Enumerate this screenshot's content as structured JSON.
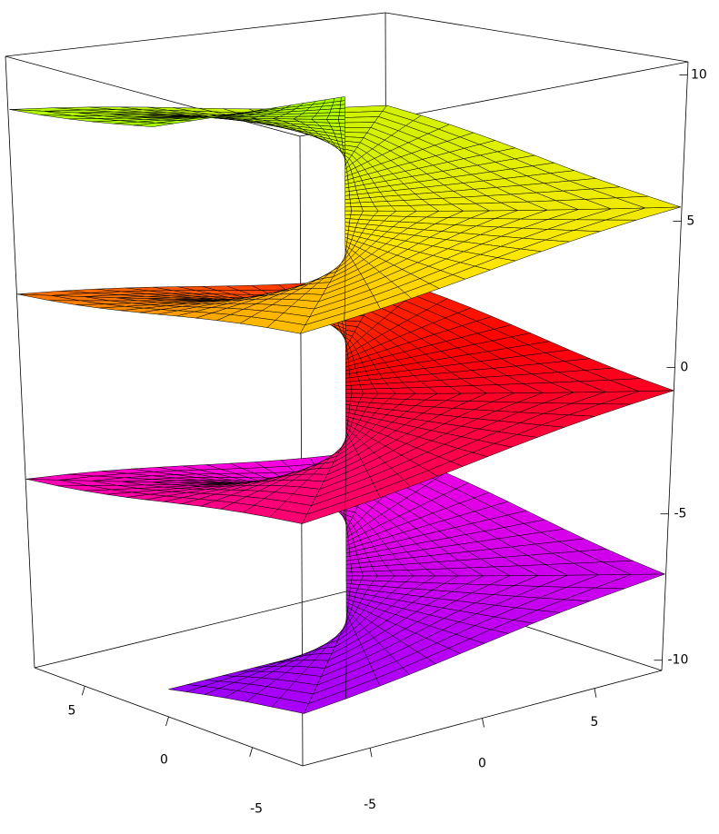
{
  "chart_data": {
    "type": "surface",
    "xlim": [
      -8,
      8
    ],
    "ylim": [
      -8,
      8
    ],
    "zlim": [
      -10.35,
      10.45
    ],
    "xticks": [
      -5,
      0,
      5
    ],
    "yticks": [
      -5,
      0,
      5
    ],
    "zticks": [
      -10,
      -5,
      0,
      5,
      10
    ],
    "surface_z": [
      -9.42,
      9.42
    ],
    "colors": [
      "#9900ff",
      "#ff00dd",
      "#ff0000",
      "#ffe600",
      "#a6ff00"
    ]
  }
}
